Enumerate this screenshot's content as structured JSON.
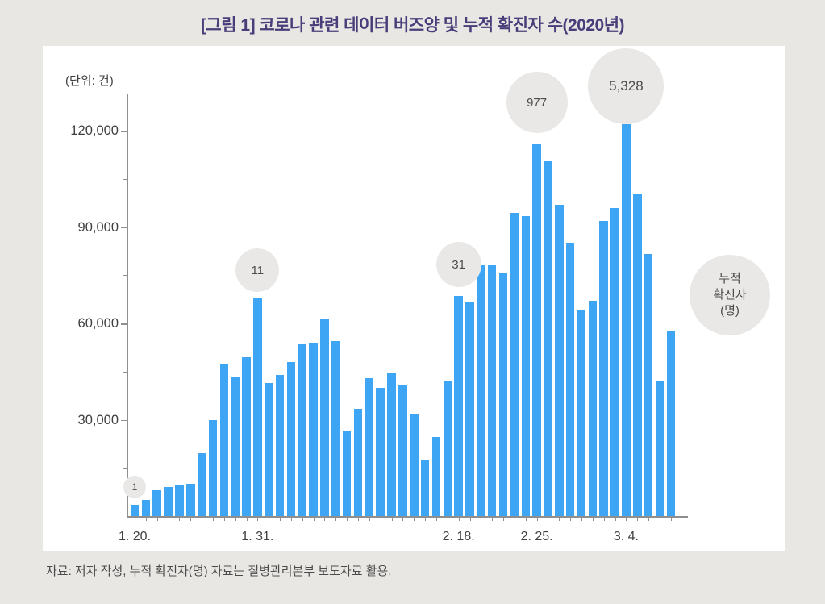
{
  "page": {
    "title": "[그림 1] 코로나 관련 데이터 버즈양 및 누적 확진자 수(2020년)",
    "title_color": "#4a3e7a",
    "background_color": "#e9e7e4",
    "source_note": "자료: 저자 작성, 누적 확진자(명) 자료는 질병관리본부 보도자료 활용."
  },
  "chart_data": {
    "type": "bar",
    "title": "[그림 1] 코로나 관련 데이터 버즈양 및 누적 확진자 수(2020년)",
    "unit_label": "(단위: 건)",
    "bar_color": "#3da5f4",
    "ylim": [
      0,
      125000
    ],
    "yticks": [
      30000,
      60000,
      90000,
      120000
    ],
    "ytick_labels": [
      "30,000",
      "60,000",
      "90,000",
      "120,000"
    ],
    "minor_yticks": [
      15000,
      45000,
      75000,
      105000
    ],
    "grid": false,
    "categories": [
      "1.20",
      "1.21",
      "1.22",
      "1.23",
      "1.24",
      "1.25",
      "1.26",
      "1.27",
      "1.28",
      "1.29",
      "1.30",
      "1.31",
      "2.1",
      "2.2",
      "2.3",
      "2.4",
      "2.5",
      "2.6",
      "2.7",
      "2.8",
      "2.9",
      "2.10",
      "2.11",
      "2.12",
      "2.13",
      "2.14",
      "2.15",
      "2.16",
      "2.17",
      "2.18",
      "2.19",
      "2.20",
      "2.21",
      "2.22",
      "2.23",
      "2.24",
      "2.25",
      "2.26",
      "2.27",
      "2.28",
      "2.29",
      "3.1",
      "3.2",
      "3.3",
      "3.4",
      "3.5",
      "3.6",
      "3.7",
      "3.8"
    ],
    "values": [
      3500,
      5000,
      8000,
      9000,
      9500,
      10000,
      19500,
      30000,
      47500,
      43500,
      49500,
      68000,
      41500,
      44000,
      48000,
      53500,
      54000,
      61500,
      54500,
      26500,
      33500,
      43000,
      40000,
      44500,
      41000,
      32000,
      17500,
      24500,
      42000,
      68500,
      66500,
      78000,
      78000,
      75500,
      94500,
      93500,
      116000,
      110500,
      97000,
      85000,
      64000,
      67000,
      92000,
      96000,
      122000,
      100500,
      81500,
      42000,
      57500
    ],
    "xtick_labels": [
      {
        "label": "1. 20.",
        "index": 0
      },
      {
        "label": "1. 31.",
        "index": 11
      },
      {
        "label": "2. 18.",
        "index": 29
      },
      {
        "label": "2. 25.",
        "index": 36
      },
      {
        "label": "3. 4.",
        "index": 44
      }
    ],
    "annotations": [
      {
        "label": "1",
        "index": 0,
        "cy": 547,
        "r": 14,
        "font_px": 12
      },
      {
        "label": "11",
        "index": 11,
        "cy": 278,
        "r": 27,
        "font_px": 15
      },
      {
        "label": "31",
        "index": 29,
        "cy": 271,
        "r": 28,
        "font_px": 15
      },
      {
        "label": "977",
        "index": 36,
        "cy": 70,
        "r": 38,
        "font_px": 15
      },
      {
        "label": "5,328",
        "index": 44,
        "cy": 50,
        "r": 47,
        "font_px": 17
      }
    ],
    "legend_circle": {
      "lines": [
        "누적",
        "확진자",
        "(명)"
      ],
      "cx": 852,
      "cy": 309,
      "r": 50,
      "font_px": 15
    },
    "annotation_series_name": "누적 확진자(명)"
  }
}
